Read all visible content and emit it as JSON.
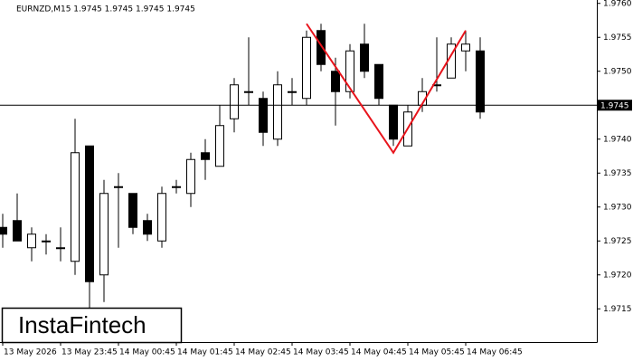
{
  "chart_data": {
    "type": "candlestick",
    "title": "EURNZD,M15  1.9745 1.9745 1.9745 1.9745",
    "watermark": "InstaFintech",
    "categories": [
      "13 May 2026",
      null,
      null,
      null,
      "13 May 23:45",
      null,
      null,
      null,
      "14 May 00:45",
      null,
      null,
      null,
      "14 May 01:45",
      null,
      null,
      null,
      "14 May 02:45",
      null,
      null,
      null,
      "14 May 03:45",
      null,
      null,
      null,
      "14 May 04:45",
      null,
      null,
      null,
      "14 May 05:45",
      null,
      null,
      null,
      "14 May 06:45",
      null
    ],
    "open": [
      1.9727,
      1.9728,
      1.9724,
      1.9725,
      1.9724,
      1.9722,
      1.9739,
      1.972,
      1.9733,
      1.9732,
      1.9728,
      1.9725,
      1.9733,
      1.9732,
      1.9738,
      1.9736,
      1.9743,
      1.9747,
      1.9746,
      1.974,
      1.9747,
      1.9746,
      1.9756,
      1.975,
      1.9747,
      1.9754,
      1.9751,
      1.9745,
      1.9739,
      1.9745,
      1.9748,
      1.9749,
      1.9753,
      1.9753
    ],
    "high": [
      1.9729,
      1.9732,
      1.9727,
      1.9726,
      1.9727,
      1.9743,
      1.9739,
      1.9734,
      1.9735,
      1.9732,
      1.9729,
      1.9733,
      1.9734,
      1.9738,
      1.974,
      1.9745,
      1.9749,
      1.9755,
      1.9747,
      1.975,
      1.9749,
      1.9756,
      1.9757,
      1.9752,
      1.9754,
      1.9757,
      1.9751,
      1.9745,
      1.9745,
      1.9749,
      1.9755,
      1.9755,
      1.9756,
      1.9755
    ],
    "low": [
      1.9724,
      1.9725,
      1.9722,
      1.9723,
      1.9722,
      1.972,
      1.9715,
      1.9716,
      1.9724,
      1.9726,
      1.9725,
      1.9724,
      1.9732,
      1.973,
      1.9734,
      1.9736,
      1.9741,
      1.9745,
      1.9739,
      1.9739,
      1.9745,
      1.9745,
      1.975,
      1.9742,
      1.9746,
      1.9749,
      1.9745,
      1.9739,
      1.9739,
      1.9744,
      1.9747,
      1.9749,
      1.975,
      1.9743
    ],
    "close": [
      1.9726,
      1.9725,
      1.9726,
      1.9725,
      1.9724,
      1.9738,
      1.9719,
      1.9732,
      1.9733,
      1.9727,
      1.9726,
      1.9732,
      1.9733,
      1.9737,
      1.9737,
      1.9742,
      1.9748,
      1.9747,
      1.9741,
      1.9748,
      1.9747,
      1.9755,
      1.9751,
      1.9747,
      1.9753,
      1.975,
      1.9746,
      1.974,
      1.9744,
      1.9747,
      1.9748,
      1.9754,
      1.9754,
      1.9744
    ],
    "up_color": "#ffffff",
    "down_color": "#000000",
    "current_price": 1.9745,
    "pattern": {
      "color": "#e8141c",
      "values": [
        1.9757,
        1.9738,
        1.9756
      ]
    },
    "ylim": [
      1.97101,
      1.97605
    ],
    "yticks": [
      {
        "value": 1.976,
        "label": "1.9760"
      },
      1.9755,
      {
        "value": 1.975,
        "label": "1.9750"
      },
      1.9745,
      {
        "value": 1.974,
        "label": "1.9740"
      },
      1.9735,
      {
        "value": 1.973,
        "label": "1.9730"
      },
      1.9725,
      {
        "value": 1.972,
        "label": "1.9720"
      },
      1.9715
    ]
  }
}
